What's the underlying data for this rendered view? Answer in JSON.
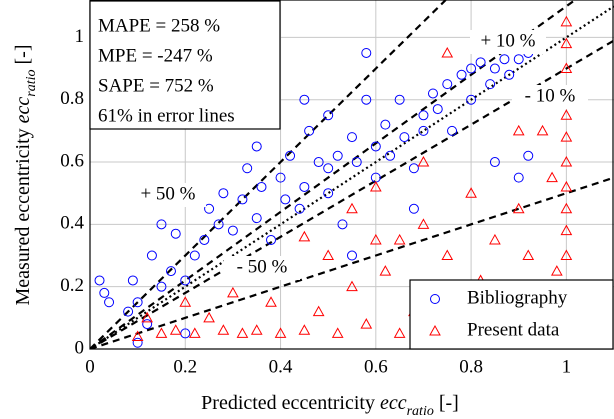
{
  "chart_data": {
    "type": "scatter",
    "x_label": {
      "text": "Predicted eccentricity",
      "var": "ecc",
      "sub": "ratio",
      "unit": "[-]"
    },
    "y_label": {
      "text": "Measured eccentricity",
      "var": "ecc",
      "sub": "ratio",
      "unit": "[-]"
    },
    "xlim": [
      0,
      1.1
    ],
    "ylim": [
      0,
      1.12
    ],
    "xticks": [
      0,
      0.2,
      0.4,
      0.6,
      0.8,
      1
    ],
    "yticks": [
      0,
      0.2,
      0.4,
      0.6,
      0.8,
      1
    ],
    "grid": true,
    "legend": "lower right",
    "annotations": [
      "MAPE = 258 %",
      "MPE = -247 %",
      "SAPE = 752 %",
      "61% in error lines"
    ],
    "reference_lines": [
      {
        "slope": 1,
        "style": "dotted"
      },
      {
        "slope": 1.1,
        "style": "dashed",
        "label": "+ 10 %"
      },
      {
        "slope": 0.9,
        "style": "dashed",
        "label": "- 10 %"
      },
      {
        "slope": 1.5,
        "style": "dashed",
        "label": "+ 50 %"
      },
      {
        "slope": 0.5,
        "style": "dashed",
        "label": "- 50 %"
      }
    ],
    "series": [
      {
        "name": "Bibliography",
        "color": "#0000ff",
        "marker": "circle",
        "x": [
          0.02,
          0.03,
          0.04,
          0.08,
          0.09,
          0.1,
          0.12,
          0.13,
          0.15,
          0.17,
          0.18,
          0.2,
          0.22,
          0.24,
          0.25,
          0.27,
          0.28,
          0.3,
          0.32,
          0.33,
          0.35,
          0.36,
          0.38,
          0.4,
          0.41,
          0.42,
          0.44,
          0.45,
          0.46,
          0.48,
          0.5,
          0.5,
          0.52,
          0.53,
          0.55,
          0.56,
          0.58,
          0.6,
          0.6,
          0.62,
          0.63,
          0.65,
          0.66,
          0.68,
          0.7,
          0.7,
          0.72,
          0.73,
          0.75,
          0.76,
          0.78,
          0.8,
          0.8,
          0.82,
          0.84,
          0.85,
          0.87,
          0.88,
          0.9,
          0.92,
          0.58,
          0.5,
          0.45,
          0.68,
          0.85,
          0.9,
          0.92,
          0.55,
          0.4,
          0.2,
          0.1,
          0.35,
          0.15
        ],
        "values": [
          0.22,
          0.18,
          0.15,
          0.12,
          0.22,
          0.15,
          0.08,
          0.3,
          0.2,
          0.25,
          0.37,
          0.22,
          0.3,
          0.35,
          0.45,
          0.4,
          0.5,
          0.38,
          0.48,
          0.58,
          0.42,
          0.52,
          0.35,
          0.55,
          0.48,
          0.62,
          0.45,
          0.52,
          0.7,
          0.6,
          0.5,
          0.58,
          0.62,
          0.4,
          0.68,
          0.6,
          0.8,
          0.65,
          0.55,
          0.72,
          0.62,
          0.8,
          0.68,
          0.58,
          0.75,
          0.7,
          0.82,
          0.77,
          0.85,
          0.7,
          0.88,
          0.8,
          0.9,
          0.92,
          0.85,
          0.9,
          0.93,
          0.88,
          0.93,
          0.95,
          0.95,
          0.75,
          0.8,
          0.45,
          0.6,
          0.55,
          0.62,
          0.3,
          0.28,
          0.05,
          0.02,
          0.65,
          0.4
        ]
      },
      {
        "name": "Present data",
        "color": "#ff0000",
        "marker": "triangle",
        "x": [
          1,
          1,
          1,
          1,
          1,
          1,
          1,
          1,
          1,
          1,
          1,
          1,
          1,
          1,
          0.98,
          0.97,
          0.95,
          0.95,
          0.92,
          0.9,
          0.88,
          0.85,
          0.82,
          0.8,
          0.78,
          0.75,
          0.72,
          0.7,
          0.68,
          0.65,
          0.62,
          0.6,
          0.58,
          0.55,
          0.52,
          0.5,
          0.48,
          0.45,
          0.42,
          0.4,
          0.38,
          0.35,
          0.32,
          0.3,
          0.28,
          0.25,
          0.22,
          0.2,
          0.18,
          0.15,
          0.12,
          0.1,
          0.6,
          0.55,
          0.7,
          0.3,
          0.75,
          0.9,
          0.65,
          0.45
        ],
        "values": [
          0.05,
          0.12,
          0.2,
          0.3,
          0.38,
          0.45,
          0.52,
          0.6,
          0.68,
          0.75,
          0.82,
          0.9,
          0.98,
          1.05,
          0.25,
          0.55,
          0.7,
          0.15,
          0.3,
          0.45,
          0.1,
          0.35,
          0.22,
          0.5,
          0.08,
          0.3,
          0.18,
          0.4,
          0.12,
          0.05,
          0.25,
          0.35,
          0.08,
          0.2,
          0.05,
          0.3,
          0.12,
          0.06,
          0.25,
          0.05,
          0.15,
          0.06,
          0.05,
          0.18,
          0.06,
          0.1,
          0.05,
          0.15,
          0.06,
          0.05,
          0.1,
          0.04,
          0.52,
          0.45,
          0.6,
          0.9,
          0.95,
          0.7,
          0.35,
          0.36
        ]
      }
    ]
  }
}
